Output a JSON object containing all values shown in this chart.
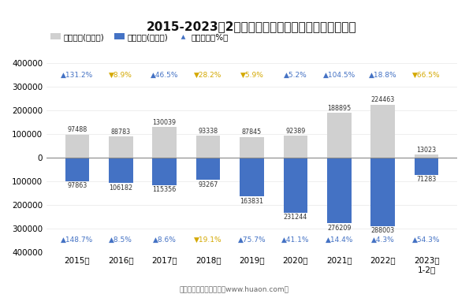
{
  "title": "2015-2023年2月广州白云机场综合保税区进、出口额",
  "years": [
    "2015年",
    "2016年",
    "2017年",
    "2018年",
    "2019年",
    "2020年",
    "2021年",
    "2022年",
    "2023年\n1-2月"
  ],
  "export_values": [
    97488,
    88783,
    130039,
    93338,
    87845,
    92389,
    188895,
    224463,
    13023
  ],
  "import_values": [
    97863,
    106182,
    115356,
    93267,
    163831,
    231244,
    276209,
    288003,
    71283
  ],
  "export_growth": [
    131.2,
    -8.9,
    46.5,
    -28.2,
    -5.9,
    5.2,
    104.5,
    18.8,
    -66.5
  ],
  "import_growth": [
    148.7,
    8.5,
    8.6,
    -19.1,
    75.7,
    41.1,
    14.4,
    4.3,
    54.3
  ],
  "export_color": "#d0d0d0",
  "import_color": "#4472c4",
  "growth_up_color": "#4472c4",
  "growth_down_color": "#d4a800",
  "background_color": "#ffffff",
  "bar_width": 0.55,
  "ylim": 400000,
  "footer": "制图：华经产业研究院（www.huaon.com）",
  "yticks": [
    400000,
    300000,
    200000,
    100000,
    0,
    100000,
    200000,
    300000,
    400000
  ]
}
